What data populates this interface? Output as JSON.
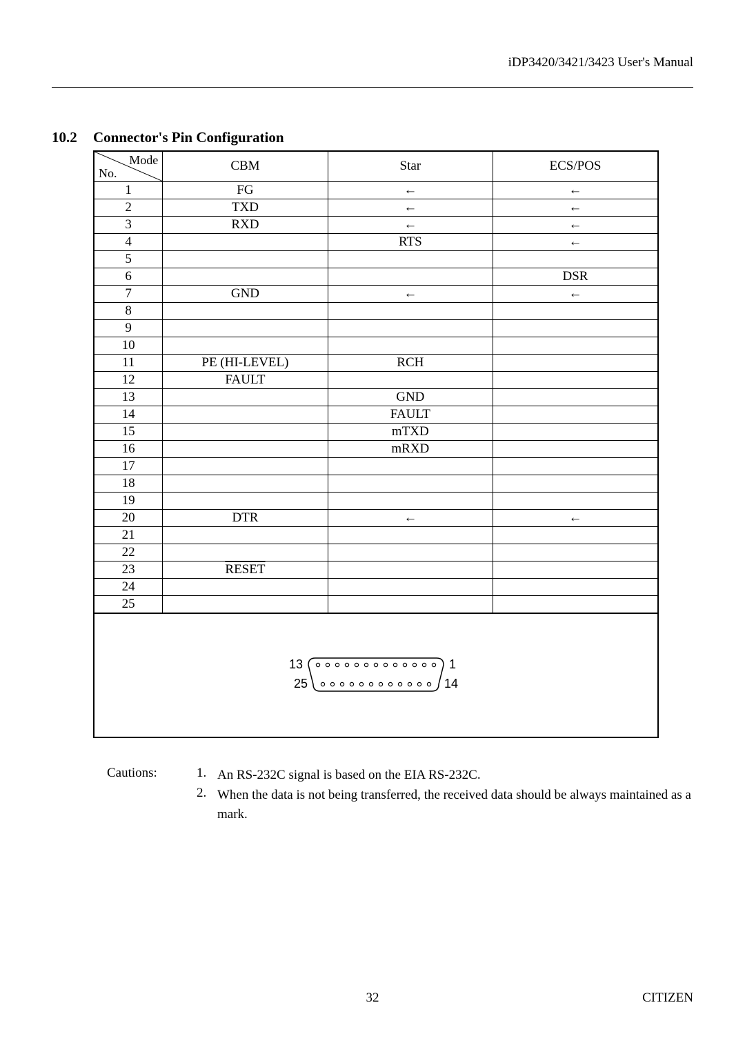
{
  "header": {
    "right_text": "iDP3420/3421/3423 User's Manual"
  },
  "section": {
    "number": "10.2",
    "title": "Connector's Pin Configuration"
  },
  "table": {
    "corner_top": "Mode",
    "corner_bottom": "No.",
    "columns": [
      "CBM",
      "Star",
      "ECS/POS"
    ],
    "rows": [
      {
        "no": "1",
        "cbm": "FG",
        "star": "←",
        "ecs": "←"
      },
      {
        "no": "2",
        "cbm": "TXD",
        "star": "←",
        "ecs": "←"
      },
      {
        "no": "3",
        "cbm": "RXD",
        "star": "←",
        "ecs": "←"
      },
      {
        "no": "4",
        "cbm": "",
        "star": "RTS",
        "ecs": "←"
      },
      {
        "no": "5",
        "cbm": "",
        "star": "",
        "ecs": ""
      },
      {
        "no": "6",
        "cbm": "",
        "star": "",
        "ecs": "DSR"
      },
      {
        "no": "7",
        "cbm": "GND",
        "star": "←",
        "ecs": "←"
      },
      {
        "no": "8",
        "cbm": "",
        "star": "",
        "ecs": ""
      },
      {
        "no": "9",
        "cbm": "",
        "star": "",
        "ecs": ""
      },
      {
        "no": "10",
        "cbm": "",
        "star": "",
        "ecs": ""
      },
      {
        "no": "11",
        "cbm": "PE (HI-LEVEL)",
        "star": "RCH",
        "ecs": ""
      },
      {
        "no": "12",
        "cbm": "FAULT",
        "star": "",
        "ecs": ""
      },
      {
        "no": "13",
        "cbm": "",
        "star": "GND",
        "ecs": ""
      },
      {
        "no": "14",
        "cbm": "",
        "star": "FAULT",
        "ecs": ""
      },
      {
        "no": "15",
        "cbm": "",
        "star": "mTXD",
        "ecs": ""
      },
      {
        "no": "16",
        "cbm": "",
        "star": "mRXD",
        "ecs": ""
      },
      {
        "no": "17",
        "cbm": "",
        "star": "",
        "ecs": ""
      },
      {
        "no": "18",
        "cbm": "",
        "star": "",
        "ecs": ""
      },
      {
        "no": "19",
        "cbm": "",
        "star": "",
        "ecs": ""
      },
      {
        "no": "20",
        "cbm": "DTR",
        "star": "←",
        "ecs": "←"
      },
      {
        "no": "21",
        "cbm": "",
        "star": "",
        "ecs": ""
      },
      {
        "no": "22",
        "cbm": "",
        "star": "",
        "ecs": ""
      },
      {
        "no": "23",
        "cbm": "RESET",
        "cbm_overline": true,
        "star": "",
        "ecs": ""
      },
      {
        "no": "24",
        "cbm": "",
        "star": "",
        "ecs": ""
      },
      {
        "no": "25",
        "cbm": "",
        "star": "",
        "ecs": ""
      }
    ]
  },
  "connector": {
    "top_left_label": "13",
    "top_right_label": "1",
    "bottom_left_label": "25",
    "bottom_right_label": "14",
    "top_pin_count": 13,
    "bottom_pin_count": 12,
    "pin_radius": 2.6,
    "pin_spacing": 14,
    "stroke_color": "#000000",
    "stroke_width": 1.5,
    "label_fontsize": 18
  },
  "cautions": {
    "label": "Cautions:",
    "items": [
      {
        "num": "1.",
        "text": "An RS-232C signal is based on the EIA RS-232C."
      },
      {
        "num": "2.",
        "text": "When the data is not being transferred, the received data should be always maintained as a mark."
      }
    ]
  },
  "footer": {
    "page_number": "32",
    "brand": "CITIZEN"
  }
}
